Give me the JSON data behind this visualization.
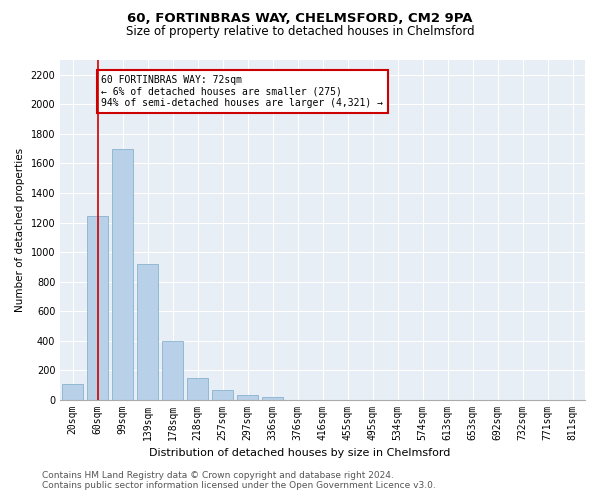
{
  "title1": "60, FORTINBRAS WAY, CHELMSFORD, CM2 9PA",
  "title2": "Size of property relative to detached houses in Chelmsford",
  "xlabel": "Distribution of detached houses by size in Chelmsford",
  "ylabel": "Number of detached properties",
  "categories": [
    "20sqm",
    "60sqm",
    "99sqm",
    "139sqm",
    "178sqm",
    "218sqm",
    "257sqm",
    "297sqm",
    "336sqm",
    "376sqm",
    "416sqm",
    "455sqm",
    "495sqm",
    "534sqm",
    "574sqm",
    "613sqm",
    "653sqm",
    "692sqm",
    "732sqm",
    "771sqm",
    "811sqm"
  ],
  "values": [
    110,
    1245,
    1700,
    920,
    400,
    150,
    70,
    35,
    22,
    0,
    0,
    0,
    0,
    0,
    0,
    0,
    0,
    0,
    0,
    0,
    0
  ],
  "bar_color": "#b8d0e8",
  "bar_edge_color": "#7aaac8",
  "vline_x_index": 1,
  "vline_color": "#cc0000",
  "annotation_text": "60 FORTINBRAS WAY: 72sqm\n← 6% of detached houses are smaller (275)\n94% of semi-detached houses are larger (4,321) →",
  "annotation_box_color": "#ffffff",
  "annotation_box_edge_color": "#cc0000",
  "ylim": [
    0,
    2300
  ],
  "yticks": [
    0,
    200,
    400,
    600,
    800,
    1000,
    1200,
    1400,
    1600,
    1800,
    2000,
    2200
  ],
  "footer1": "Contains HM Land Registry data © Crown copyright and database right 2024.",
  "footer2": "Contains public sector information licensed under the Open Government Licence v3.0.",
  "plot_bg_color": "#e8eef5",
  "title1_fontsize": 9.5,
  "title2_fontsize": 8.5,
  "xlabel_fontsize": 8,
  "ylabel_fontsize": 7.5,
  "tick_fontsize": 7,
  "annot_fontsize": 7,
  "footer_fontsize": 6.5
}
